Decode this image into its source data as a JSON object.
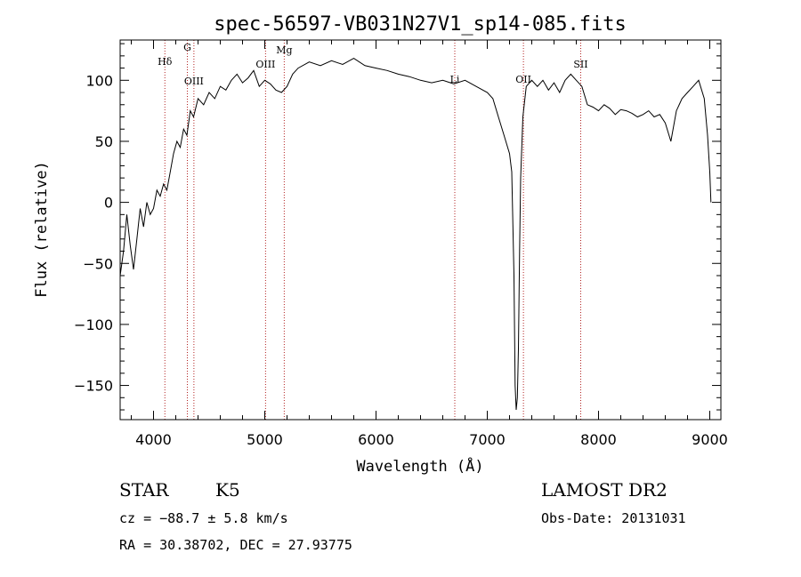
{
  "chart_data": {
    "type": "line",
    "title": "spec-56597-VB031N27V1_sp14-085.fits",
    "xlabel": "Wavelength (Å)",
    "ylabel": "Flux (relative)",
    "xlim": [
      3700,
      9100
    ],
    "ylim": [
      -178,
      133
    ],
    "x_ticks": [
      4000,
      5000,
      6000,
      7000,
      8000,
      9000
    ],
    "y_ticks": [
      -150,
      -100,
      -50,
      0,
      50,
      100
    ],
    "grid": false,
    "series": [
      {
        "color": "#000000",
        "points": [
          [
            3700,
            -60
          ],
          [
            3730,
            -40
          ],
          [
            3760,
            -10
          ],
          [
            3790,
            -35
          ],
          [
            3820,
            -55
          ],
          [
            3850,
            -30
          ],
          [
            3880,
            -5
          ],
          [
            3910,
            -20
          ],
          [
            3940,
            0
          ],
          [
            3970,
            -10
          ],
          [
            4000,
            -5
          ],
          [
            4030,
            10
          ],
          [
            4060,
            5
          ],
          [
            4090,
            15
          ],
          [
            4120,
            10
          ],
          [
            4150,
            25
          ],
          [
            4180,
            40
          ],
          [
            4210,
            50
          ],
          [
            4240,
            45
          ],
          [
            4270,
            60
          ],
          [
            4300,
            55
          ],
          [
            4330,
            75
          ],
          [
            4360,
            70
          ],
          [
            4400,
            85
          ],
          [
            4450,
            80
          ],
          [
            4500,
            90
          ],
          [
            4550,
            85
          ],
          [
            4600,
            95
          ],
          [
            4650,
            92
          ],
          [
            4700,
            100
          ],
          [
            4750,
            105
          ],
          [
            4800,
            98
          ],
          [
            4850,
            102
          ],
          [
            4900,
            108
          ],
          [
            4950,
            95
          ],
          [
            5000,
            100
          ],
          [
            5050,
            97
          ],
          [
            5100,
            92
          ],
          [
            5150,
            90
          ],
          [
            5200,
            95
          ],
          [
            5250,
            105
          ],
          [
            5300,
            110
          ],
          [
            5400,
            115
          ],
          [
            5500,
            112
          ],
          [
            5600,
            116
          ],
          [
            5700,
            113
          ],
          [
            5800,
            118
          ],
          [
            5900,
            112
          ],
          [
            6000,
            110
          ],
          [
            6100,
            108
          ],
          [
            6200,
            105
          ],
          [
            6300,
            103
          ],
          [
            6400,
            100
          ],
          [
            6500,
            98
          ],
          [
            6600,
            100
          ],
          [
            6700,
            97
          ],
          [
            6800,
            100
          ],
          [
            6900,
            95
          ],
          [
            7000,
            90
          ],
          [
            7050,
            85
          ],
          [
            7100,
            70
          ],
          [
            7150,
            55
          ],
          [
            7200,
            40
          ],
          [
            7220,
            25
          ],
          [
            7240,
            -60
          ],
          [
            7250,
            -150
          ],
          [
            7260,
            -170
          ],
          [
            7270,
            -160
          ],
          [
            7280,
            -120
          ],
          [
            7290,
            -40
          ],
          [
            7300,
            20
          ],
          [
            7320,
            70
          ],
          [
            7350,
            95
          ],
          [
            7400,
            100
          ],
          [
            7450,
            95
          ],
          [
            7500,
            100
          ],
          [
            7550,
            92
          ],
          [
            7600,
            98
          ],
          [
            7650,
            90
          ],
          [
            7700,
            100
          ],
          [
            7750,
            105
          ],
          [
            7800,
            100
          ],
          [
            7850,
            95
          ],
          [
            7900,
            80
          ],
          [
            7950,
            78
          ],
          [
            8000,
            75
          ],
          [
            8050,
            80
          ],
          [
            8100,
            77
          ],
          [
            8150,
            72
          ],
          [
            8200,
            76
          ],
          [
            8250,
            75
          ],
          [
            8300,
            73
          ],
          [
            8350,
            70
          ],
          [
            8400,
            72
          ],
          [
            8450,
            75
          ],
          [
            8500,
            70
          ],
          [
            8550,
            72
          ],
          [
            8600,
            65
          ],
          [
            8650,
            50
          ],
          [
            8700,
            75
          ],
          [
            8750,
            85
          ],
          [
            8800,
            90
          ],
          [
            8850,
            95
          ],
          [
            8900,
            100
          ],
          [
            8950,
            85
          ],
          [
            8980,
            55
          ],
          [
            9000,
            25
          ],
          [
            9010,
            0
          ]
        ]
      }
    ],
    "reference_lines": [
      {
        "label": "Hδ",
        "x": 4102
      },
      {
        "label": "G",
        "x": 4304
      },
      {
        "label": "OIII",
        "x": 4363
      },
      {
        "label": "OIII",
        "x": 5007
      },
      {
        "label": "Mg",
        "x": 5175
      },
      {
        "label": "Li",
        "x": 6708
      },
      {
        "label": "OII",
        "x": 7325
      },
      {
        "label": "SII",
        "x": 7840
      }
    ],
    "reference_line_color": "#b22222"
  },
  "info": {
    "star_class": "STAR",
    "subclass": "K5",
    "survey": "LAMOST DR2",
    "cz": "cz = −88.7 ± 5.8 km/s",
    "obs_date": "Obs-Date: 20131031",
    "radec": "RA =  30.38702, DEC =  27.93775"
  }
}
